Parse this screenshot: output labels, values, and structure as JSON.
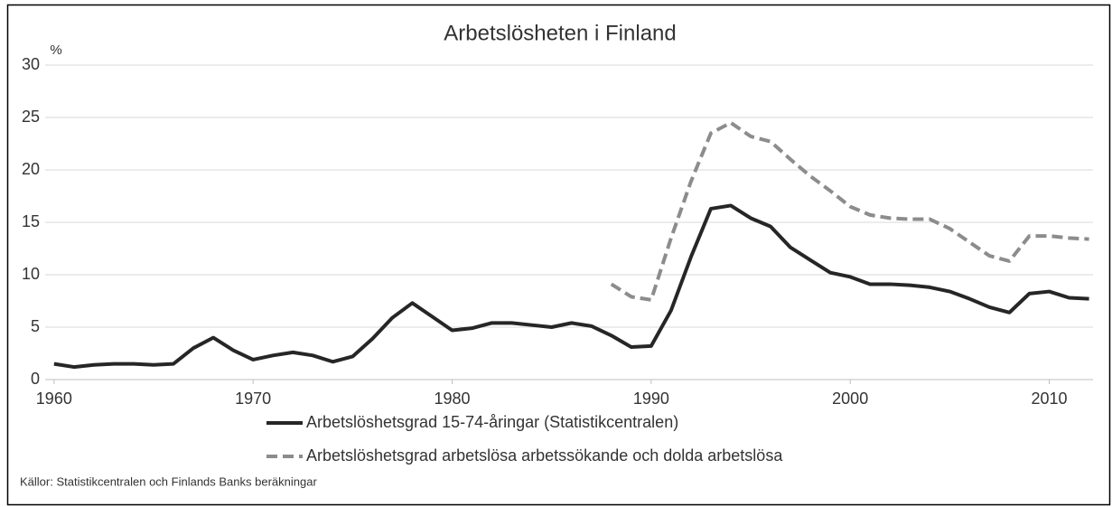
{
  "chart_data": {
    "type": "line",
    "title": "Arbetslösheten i Finland",
    "y_unit": "%",
    "x": [
      1960,
      1961,
      1962,
      1963,
      1964,
      1965,
      1966,
      1967,
      1968,
      1969,
      1970,
      1971,
      1972,
      1973,
      1974,
      1975,
      1976,
      1977,
      1978,
      1979,
      1980,
      1981,
      1982,
      1983,
      1984,
      1985,
      1986,
      1987,
      1988,
      1989,
      1990,
      1991,
      1992,
      1993,
      1994,
      1995,
      1996,
      1997,
      1998,
      1999,
      2000,
      2001,
      2002,
      2003,
      2004,
      2005,
      2006,
      2007,
      2008,
      2009,
      2010,
      2011,
      2012
    ],
    "series": [
      {
        "name": "Arbetslöshetsgrad 15-74-åringar (Statistikcentralen)",
        "color": "#262626",
        "dash": "solid",
        "values": [
          1.5,
          1.2,
          1.4,
          1.5,
          1.5,
          1.4,
          1.5,
          3.0,
          4.0,
          2.8,
          1.9,
          2.3,
          2.6,
          2.3,
          1.7,
          2.2,
          3.9,
          5.9,
          7.3,
          6.0,
          4.7,
          4.9,
          5.4,
          5.4,
          5.2,
          5.0,
          5.4,
          5.1,
          4.2,
          3.1,
          3.2,
          6.6,
          11.7,
          16.3,
          16.6,
          15.4,
          14.6,
          12.6,
          11.4,
          10.2,
          9.8,
          9.1,
          9.1,
          9.0,
          8.8,
          8.4,
          7.7,
          6.9,
          6.4,
          8.2,
          8.4,
          7.8,
          7.7
        ]
      },
      {
        "name": "Arbetslöshetsgrad arbetslösa arbetssökande och dolda arbetslösa",
        "color": "#8c8c8c",
        "dash": "dashed",
        "values": [
          null,
          null,
          null,
          null,
          null,
          null,
          null,
          null,
          null,
          null,
          null,
          null,
          null,
          null,
          null,
          null,
          null,
          null,
          null,
          null,
          null,
          null,
          null,
          null,
          null,
          null,
          null,
          null,
          9.1,
          7.9,
          7.6,
          13.5,
          18.9,
          23.5,
          24.5,
          23.2,
          22.7,
          21.0,
          19.4,
          18.0,
          16.5,
          15.7,
          15.4,
          15.3,
          15.3,
          14.4,
          13.1,
          11.8,
          11.3,
          13.7,
          13.7,
          13.5,
          13.4
        ]
      }
    ],
    "xlim": [
      1959.1,
      2012.2
    ],
    "xticks": [
      1960,
      1970,
      1980,
      1990,
      2000,
      2010
    ],
    "ylim": [
      0,
      30
    ],
    "yticks": [
      0,
      5,
      10,
      15,
      20,
      25,
      30
    ],
    "grid": true,
    "source": "Källor: Statistikcentralen och Finlands Banks beräkningar"
  }
}
